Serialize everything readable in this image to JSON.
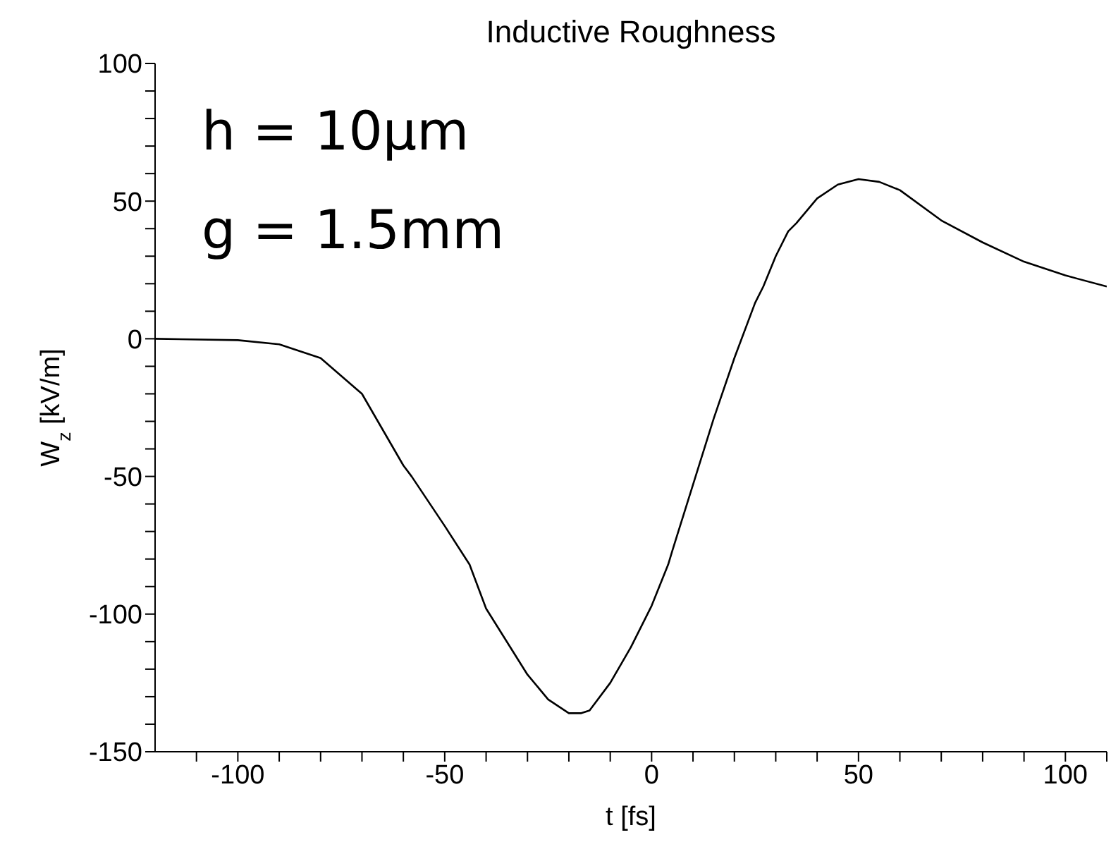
{
  "chart_data": {
    "type": "line",
    "title": "Inductive Roughness",
    "xlabel": "t [fs]",
    "ylabel": "W$_{z}$ [kV/m]",
    "annotations": [
      "h = 10µm",
      "g = 1.5mm"
    ],
    "x": [
      -120,
      -100,
      -90,
      -80,
      -70,
      -60,
      -58,
      -50,
      -44,
      -40,
      -30,
      -25,
      -20,
      -17,
      -15,
      -10,
      -5,
      0,
      4,
      5,
      10,
      15,
      20,
      25,
      27,
      30,
      33,
      35,
      40,
      45,
      50,
      55,
      60,
      70,
      80,
      90,
      100,
      110
    ],
    "series": [
      {
        "color": "#000000",
        "values": [
          0,
          -0.5,
          -2,
          -7,
          -20,
          -46,
          -50,
          -68,
          -82,
          -98,
          -122,
          -131,
          -136,
          -136,
          -135,
          -125,
          -112,
          -97,
          -82,
          -77,
          -53,
          -29,
          -7,
          13,
          19,
          30,
          39,
          42,
          51,
          56,
          58,
          57,
          54,
          43,
          35,
          28,
          23,
          19
        ]
      }
    ],
    "xlim": [
      -120,
      110
    ],
    "ylim": [
      -150,
      100
    ],
    "xticks": [
      {
        "value": -110,
        "label": null
      },
      -100,
      {
        "value": -90,
        "label": null
      },
      {
        "value": -80,
        "label": null
      },
      {
        "value": -70,
        "label": null
      },
      {
        "value": -60,
        "label": null
      },
      -50,
      {
        "value": -40,
        "label": null
      },
      {
        "value": -30,
        "label": null
      },
      {
        "value": -20,
        "label": null
      },
      {
        "value": -10,
        "label": null
      },
      0,
      {
        "value": 10,
        "label": null
      },
      {
        "value": 20,
        "label": null
      },
      {
        "value": 30,
        "label": null
      },
      {
        "value": 40,
        "label": null
      },
      50,
      {
        "value": 60,
        "label": null
      },
      {
        "value": 70,
        "label": null
      },
      {
        "value": 80,
        "label": null
      },
      {
        "value": 90,
        "label": null
      },
      100,
      {
        "value": 110,
        "label": null
      }
    ],
    "yticks": [
      -150,
      {
        "value": -140,
        "label": null
      },
      {
        "value": -130,
        "label": null
      },
      {
        "value": -120,
        "label": null
      },
      {
        "value": -110,
        "label": null
      },
      -100,
      {
        "value": -90,
        "label": null
      },
      {
        "value": -80,
        "label": null
      },
      {
        "value": -70,
        "label": null
      },
      {
        "value": -60,
        "label": null
      },
      -50,
      {
        "value": -40,
        "label": null
      },
      {
        "value": -30,
        "label": null
      },
      {
        "value": -20,
        "label": null
      },
      {
        "value": -10,
        "label": null
      },
      0,
      {
        "value": 10,
        "label": null
      },
      {
        "value": 20,
        "label": null
      },
      {
        "value": 30,
        "label": null
      },
      {
        "value": 40,
        "label": null
      },
      50,
      {
        "value": 60,
        "label": null
      },
      {
        "value": 70,
        "label": null
      },
      {
        "value": 80,
        "label": null
      },
      {
        "value": 90,
        "label": null
      },
      100
    ],
    "grid": false,
    "legend": false,
    "marker": "none",
    "line_style": "solid"
  }
}
